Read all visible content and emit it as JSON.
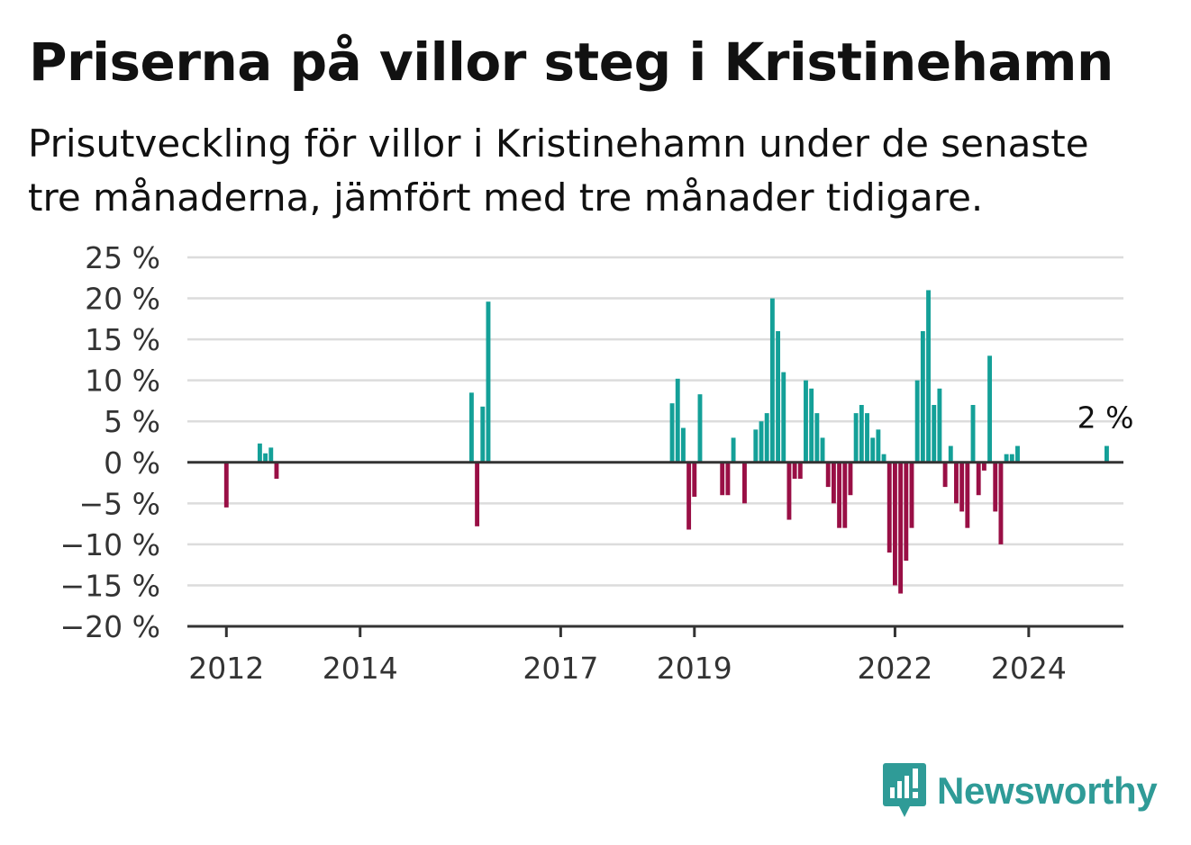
{
  "title": "Priserna på villor steg i Kristinehamn",
  "subtitle": "Prisutveckling för villor i Kristinehamn under de senaste tre månaderna, jämfört med tre månader tidigare.",
  "brand": {
    "name": "Newsworthy",
    "icon": "newsworthy-logo-icon"
  },
  "colors": {
    "positive": "#14a098",
    "negative": "#990f45",
    "grid": "#dcdcdc",
    "axis": "#333333"
  },
  "chart_data": {
    "type": "bar",
    "yunit": "%",
    "ylim": [
      -20,
      25
    ],
    "yticks": [
      {
        "value": 25,
        "label": "25 %"
      },
      {
        "value": 20,
        "label": "20 %"
      },
      {
        "value": 15,
        "label": "15 %"
      },
      {
        "value": 10,
        "label": "10 %"
      },
      {
        "value": 5,
        "label": "5 %"
      },
      {
        "value": 0,
        "label": "0 %"
      },
      {
        "value": -5,
        "label": "−5 %"
      },
      {
        "value": -10,
        "label": "−10 %"
      },
      {
        "value": -15,
        "label": "−15 %"
      },
      {
        "value": -20,
        "label": "−20 %"
      }
    ],
    "xlim": [
      "2011-06",
      "2025-06"
    ],
    "xticks": [
      {
        "value": "2012-01",
        "label": "2012"
      },
      {
        "value": "2014-01",
        "label": "2014"
      },
      {
        "value": "2017-01",
        "label": "2017"
      },
      {
        "value": "2019-01",
        "label": "2019"
      },
      {
        "value": "2022-01",
        "label": "2022"
      },
      {
        "value": "2024-01",
        "label": "2024"
      }
    ],
    "grid": true,
    "annotation": {
      "x": "2025-03",
      "label": "2 %"
    },
    "x": [
      "2012-01",
      "2012-07",
      "2012-08",
      "2012-09",
      "2012-10",
      "2015-09",
      "2015-10",
      "2015-11",
      "2015-12",
      "2018-09",
      "2018-10",
      "2018-11",
      "2018-12",
      "2019-01",
      "2019-02",
      "2019-06",
      "2019-07",
      "2019-08",
      "2019-10",
      "2019-12",
      "2020-01",
      "2020-02",
      "2020-03",
      "2020-04",
      "2020-05",
      "2020-06",
      "2020-07",
      "2020-08",
      "2020-09",
      "2020-10",
      "2020-11",
      "2020-12",
      "2021-01",
      "2021-02",
      "2021-03",
      "2021-04",
      "2021-05",
      "2021-06",
      "2021-07",
      "2021-08",
      "2021-09",
      "2021-10",
      "2021-11",
      "2021-12",
      "2022-01",
      "2022-02",
      "2022-03",
      "2022-04",
      "2022-05",
      "2022-06",
      "2022-07",
      "2022-08",
      "2022-09",
      "2022-10",
      "2022-11",
      "2022-12",
      "2023-01",
      "2023-02",
      "2023-03",
      "2023-04",
      "2023-05",
      "2023-06",
      "2023-07",
      "2023-08",
      "2023-09",
      "2023-10",
      "2023-11",
      "2023-12",
      "2024-01",
      "2024-02",
      "2024-03",
      "2024-04",
      "2024-05",
      "2024-06",
      "2024-07",
      "2024-08",
      "2024-09",
      "2024-10",
      "2024-11",
      "2024-12",
      "2025-01",
      "2025-02",
      "2025-03"
    ],
    "values": [
      -5.5,
      2.3,
      1.1,
      1.8,
      -2.0,
      8.5,
      -7.8,
      6.8,
      19.6,
      7.2,
      10.2,
      4.2,
      -8.2,
      -4.2,
      8.3,
      -4.0,
      -4.0,
      3.0,
      -5.0,
      4.0,
      5.0,
      6.0,
      20.0,
      16.0,
      11.0,
      -7.0,
      -2.0,
      -2.0,
      10.0,
      9.0,
      6.0,
      3.0,
      -3.0,
      -5.0,
      -8.0,
      -8.0,
      -4.0,
      6.0,
      7.0,
      6.0,
      3.0,
      4.0,
      1.0,
      -11.0,
      -15.0,
      -16.0,
      -12.0,
      -8.0,
      10.0,
      16.0,
      21.0,
      7.0,
      9.0,
      -3.0,
      2.0,
      -5.0,
      -6.0,
      -8.0,
      7.0,
      -4.0,
      -1.0,
      13.0,
      -6.0,
      -10.0,
      1.0,
      1.0,
      2.0,
      0.0,
      0.0,
      0.0,
      0.0,
      0.0,
      0.0,
      0.0,
      0.0,
      0.0,
      0.0,
      0.0,
      0.0,
      0.0,
      0.0,
      0.0,
      2.0
    ]
  }
}
